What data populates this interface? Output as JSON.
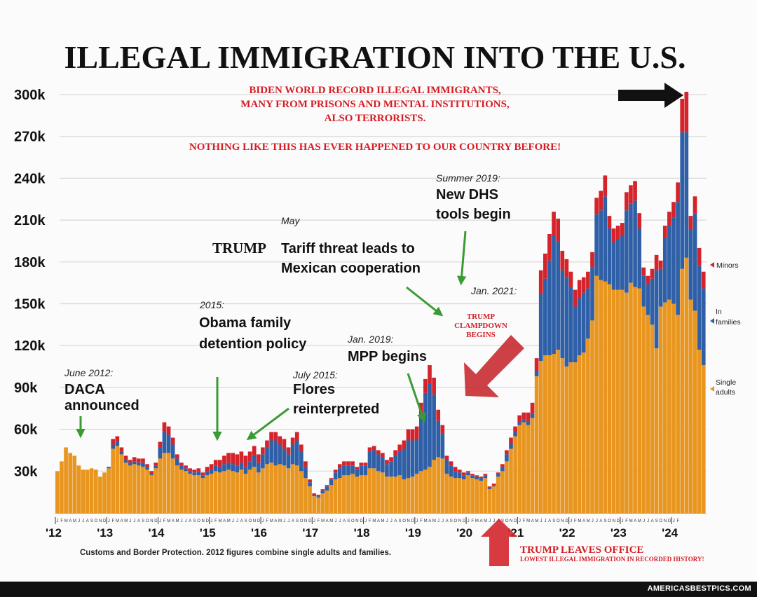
{
  "chart_data": {
    "type": "bar",
    "stacked": true,
    "title": "ILLEGAL IMMIGRATION INTO THE U.S.",
    "subtitle_lines": [
      "BIDEN WORLD RECORD ILLEGAL IMMIGRANTS,",
      "MANY FROM PRISONS AND MENTAL INSTITUTIONS,",
      "ALSO TERRORISTS."
    ],
    "subtitle_claim": "NOTHING LIKE THIS HAS EVER HAPPENED TO OUR COUNTRY BEFORE!",
    "source": "Customs and Border Protection. 2012 figures combine single adults and families.",
    "ylim": [
      0,
      300000
    ],
    "y_ticks": [
      {
        "value": 30000,
        "label": "30k"
      },
      {
        "value": 60000,
        "label": "60k"
      },
      {
        "value": 90000,
        "label": "90k"
      },
      {
        "value": 120000,
        "label": "120k"
      },
      {
        "value": 150000,
        "label": "150k"
      },
      {
        "value": 180000,
        "label": "180k"
      },
      {
        "value": 210000,
        "label": "210k"
      },
      {
        "value": 240000,
        "label": "240k"
      },
      {
        "value": 270000,
        "label": "270k"
      },
      {
        "value": 300000,
        "label": "300k"
      }
    ],
    "year_labels": [
      "'12",
      "'13",
      "'14",
      "'15",
      "'16",
      "'17",
      "'18",
      "'19",
      "'20",
      "'21",
      "'22",
      "'23",
      "'24"
    ],
    "month_letters": "JFMAMJJASOND",
    "last_year_month_letters": "JF",
    "series": [
      {
        "name": "Single adults",
        "color": "#e8961f",
        "values": [
          30000,
          37000,
          47000,
          43000,
          41000,
          34000,
          31000,
          31000,
          32000,
          31000,
          26000,
          29000,
          32000,
          46000,
          48000,
          42000,
          36000,
          34000,
          35000,
          34000,
          33000,
          31000,
          27000,
          32000,
          39000,
          43000,
          43000,
          39000,
          34000,
          31000,
          30000,
          28000,
          27000,
          27000,
          25000,
          27000,
          28000,
          30000,
          29000,
          30000,
          31000,
          30000,
          29000,
          31000,
          28000,
          31000,
          33000,
          29000,
          32000,
          35000,
          36000,
          34000,
          35000,
          34000,
          32000,
          35000,
          34000,
          30000,
          25000,
          19000,
          12000,
          11000,
          14000,
          16000,
          20000,
          24000,
          25000,
          27000,
          27000,
          28000,
          26000,
          27000,
          27000,
          32000,
          32000,
          30000,
          29000,
          26000,
          26000,
          26000,
          27000,
          24000,
          25000,
          26000,
          28000,
          30000,
          31000,
          33000,
          38000,
          40000,
          39000,
          28000,
          26000,
          25000,
          25000,
          24000,
          27000,
          25000,
          24000,
          23000,
          25000,
          17000,
          19000,
          26000,
          30000,
          37000,
          46000,
          55000,
          63000,
          65000,
          63000,
          68000,
          98000,
          109000,
          113000,
          113000,
          114000,
          117000,
          111000,
          105000,
          108000,
          108000,
          113000,
          115000,
          125000,
          138000,
          170000,
          167000,
          166000,
          164000,
          160000,
          160000,
          160000,
          158000,
          165000,
          162000,
          161000,
          148000,
          142000,
          135000,
          118000,
          148000,
          151000,
          153000,
          150000,
          142000,
          175000,
          183000,
          153000,
          145000,
          117000,
          106000
        ]
      },
      {
        "name": "In families",
        "color": "#2f5fa6",
        "values": [
          0,
          0,
          0,
          0,
          0,
          0,
          0,
          0,
          0,
          0,
          0,
          0,
          1000,
          3000,
          3000,
          2000,
          2000,
          2000,
          2000,
          2000,
          3000,
          2000,
          1000,
          2000,
          8000,
          15000,
          13000,
          10000,
          5000,
          3000,
          2000,
          2000,
          2000,
          3000,
          2000,
          3000,
          3000,
          4000,
          4000,
          5000,
          5000,
          5000,
          5000,
          5000,
          5000,
          6000,
          8000,
          7000,
          10000,
          12000,
          16000,
          18000,
          14000,
          12000,
          10000,
          14000,
          18000,
          14000,
          8000,
          3000,
          1000,
          1000,
          2000,
          3000,
          4000,
          5000,
          7000,
          7000,
          7000,
          6000,
          5000,
          7000,
          7000,
          12000,
          13000,
          12000,
          11000,
          9000,
          11000,
          15000,
          17000,
          22000,
          27000,
          26000,
          25000,
          40000,
          55000,
          60000,
          47000,
          26000,
          18000,
          10000,
          8000,
          5000,
          4000,
          3000,
          2000,
          2000,
          2000,
          2000,
          2000,
          1000,
          1000,
          2000,
          3000,
          5000,
          4000,
          3000,
          2000,
          2000,
          3000,
          3000,
          4000,
          48000,
          55000,
          68000,
          85000,
          78000,
          63000,
          64000,
          54000,
          40000,
          41000,
          43000,
          36000,
          38000,
          44000,
          50000,
          61000,
          40000,
          34000,
          36000,
          39000,
          59000,
          57000,
          62000,
          43000,
          22000,
          22000,
          33000,
          56000,
          27000,
          46000,
          53000,
          62000,
          81000,
          98000,
          90000,
          50000,
          70000,
          60000,
          55000
        ]
      },
      {
        "name": "Minors",
        "color": "#d4232a",
        "values": [
          0,
          0,
          0,
          0,
          0,
          0,
          0,
          0,
          0,
          0,
          0,
          0,
          0,
          4000,
          4000,
          3000,
          3000,
          2000,
          3000,
          3000,
          3000,
          2000,
          2000,
          2000,
          4000,
          7000,
          6000,
          5000,
          3000,
          2000,
          2000,
          2000,
          2000,
          2000,
          2000,
          3000,
          4000,
          4000,
          5000,
          6000,
          7000,
          8000,
          8000,
          8000,
          8000,
          7000,
          7000,
          6000,
          5000,
          5000,
          6000,
          6000,
          6000,
          7000,
          5000,
          5000,
          6000,
          5000,
          4000,
          2000,
          1000,
          1000,
          1000,
          1000,
          1000,
          2000,
          3000,
          3000,
          3000,
          3000,
          2000,
          2000,
          2000,
          3000,
          3000,
          3000,
          3000,
          3000,
          3000,
          4000,
          5000,
          6000,
          8000,
          8000,
          9000,
          9000,
          10000,
          13000,
          12000,
          8000,
          6000,
          3000,
          3000,
          3000,
          2000,
          2000,
          1000,
          1000,
          1000,
          1000,
          1000,
          1000,
          1000,
          1000,
          2000,
          3000,
          4000,
          4000,
          5000,
          5000,
          6000,
          8000,
          9000,
          17000,
          18000,
          19000,
          17000,
          16000,
          14000,
          13000,
          11000,
          12000,
          13000,
          11000,
          12000,
          11000,
          12000,
          14000,
          15000,
          9000,
          10000,
          10000,
          9000,
          13000,
          13000,
          14000,
          11000,
          6000,
          6000,
          7000,
          11000,
          6000,
          9000,
          10000,
          11000,
          14000,
          24000,
          29000,
          10000,
          12000,
          13000,
          12000
        ]
      }
    ],
    "legend": [
      {
        "label": "Minors",
        "color": "#d4232a"
      },
      {
        "label": "In families",
        "color": "#2f5fa6"
      },
      {
        "label": "Single adults",
        "color": "#e8961f"
      }
    ],
    "annotations": {
      "daca_date": "June 2012:",
      "daca_lines": [
        "DACA",
        "announced"
      ],
      "obama_date": "2015:",
      "obama_lines": [
        "Obama family",
        "detention policy"
      ],
      "flores_date": "July 2015:",
      "flores_lines": [
        "Flores",
        "reinterpreted"
      ],
      "tariff_date": "May",
      "tariff_trump": "TRUMP",
      "tariff_lines": [
        "Tariff threat leads to",
        "Mexican cooperation"
      ],
      "mpp_date": "Jan. 2019:",
      "mpp_line": "MPP begins",
      "dhs_date": "Summer 2019:",
      "dhs_lines": [
        "New DHS",
        "tools begin"
      ],
      "jan2021_date": "Jan. 2021:",
      "clampdown_lines": [
        "TRUMP",
        "CLAMPDOWN",
        "BEGINS"
      ],
      "leaves_office": "TRUMP LEAVES OFFICE",
      "lowest": "LOWEST ILLEGAL IMMIGRATION IN RECORDED HISTORY!"
    },
    "colors": {
      "title": "#111111",
      "claim_red": "#d41d24",
      "arrow_green": "#3a9b35",
      "grid": "#d8d8d8"
    }
  },
  "watermark": "AMERICASBESTPICS.COM"
}
